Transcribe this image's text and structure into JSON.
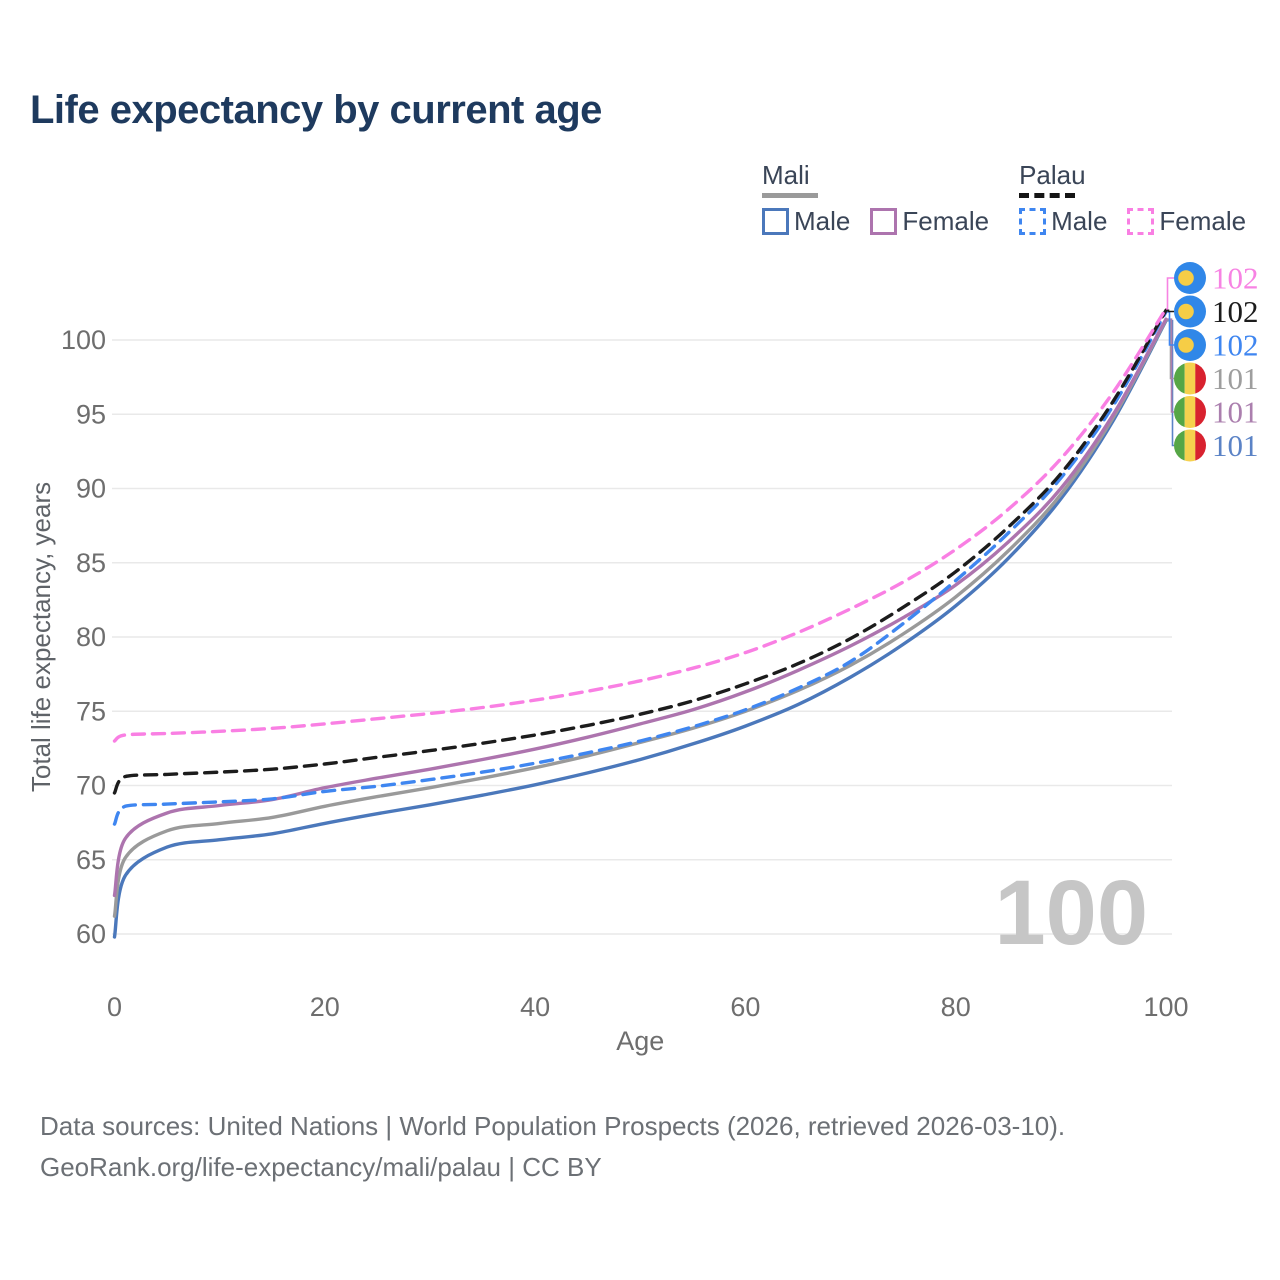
{
  "title": "Life expectancy by current age",
  "watermark_age": "100",
  "legend": {
    "groups": [
      {
        "name": "Mali",
        "line_style": "solid",
        "underline_color": "#9a9a9a",
        "items": [
          {
            "label": "Male",
            "color": "#4b78bb"
          },
          {
            "label": "Female",
            "color": "#ad74ae"
          }
        ]
      },
      {
        "name": "Palau",
        "line_style": "dashed",
        "underline_color": "#151515",
        "items": [
          {
            "label": "Male",
            "color": "#3f86f0"
          },
          {
            "label": "Female",
            "color": "#f97fe3"
          }
        ]
      }
    ]
  },
  "footer": {
    "line1": "Data sources: United Nations | World Population Prospects (2026, retrieved 2026-03-10).",
    "line2": "GeoRank.org/life-expectancy/mali/palau | CC BY"
  },
  "chart_data": {
    "type": "line",
    "title": "Life expectancy by current age",
    "xlabel": "Age",
    "ylabel": "Total life expectancy, years",
    "xlim": [
      0,
      100
    ],
    "ylim": [
      58,
      104
    ],
    "xticks": [
      0,
      20,
      40,
      60,
      80,
      100
    ],
    "yticks": [
      60,
      65,
      70,
      75,
      80,
      85,
      90,
      95,
      100
    ],
    "grid": true,
    "legend_position": "top-right",
    "grid_color": "#e9e9e9",
    "tick_color": "#6e6e6e",
    "watermark_color": "#c6c6c6",
    "x": [
      0,
      1,
      5,
      10,
      15,
      20,
      25,
      30,
      35,
      40,
      45,
      50,
      55,
      60,
      65,
      70,
      75,
      80,
      85,
      90,
      95,
      100
    ],
    "series": [
      {
        "name": "Mali — Male",
        "country": "Mali",
        "sex": "Male",
        "color": "#4b78bb",
        "dash": "solid",
        "flag": "mali",
        "end_label": "101",
        "label_color": "#5b83c6",
        "label_row": 5,
        "values": [
          59.8,
          63.9,
          65.85,
          66.35,
          66.75,
          67.45,
          68.1,
          68.7,
          69.35,
          70.05,
          70.85,
          71.75,
          72.8,
          74.0,
          75.45,
          77.3,
          79.5,
          82.1,
          85.3,
          89.3,
          94.6,
          101.3
        ]
      },
      {
        "name": "Mali — Both sexes",
        "country": "Mali",
        "sex": "Both",
        "color": "#9a9a9a",
        "dash": "solid",
        "flag": "mali",
        "end_label": "101",
        "label_color": "#9e9e9e",
        "label_row": 3,
        "values": [
          61.2,
          65.1,
          66.95,
          67.45,
          67.85,
          68.6,
          69.25,
          69.85,
          70.5,
          71.2,
          72.0,
          72.9,
          73.85,
          75.0,
          76.4,
          78.1,
          80.2,
          82.7,
          85.8,
          89.6,
          94.8,
          101.35
        ]
      },
      {
        "name": "Mali — Female",
        "country": "Mali",
        "sex": "Female",
        "color": "#ad74ae",
        "dash": "solid",
        "flag": "mali",
        "end_label": "101",
        "label_color": "#ab7fae",
        "label_row": 4,
        "values": [
          62.6,
          66.4,
          68.15,
          68.65,
          69.05,
          69.85,
          70.5,
          71.1,
          71.75,
          72.45,
          73.25,
          74.15,
          75.1,
          76.3,
          77.75,
          79.4,
          81.3,
          83.5,
          86.4,
          90.0,
          95.0,
          101.4
        ]
      },
      {
        "name": "Palau — Male",
        "country": "Palau",
        "sex": "Male",
        "color": "#3f86f0",
        "dash": "dashed",
        "flag": "palau",
        "end_label": "102",
        "label_color": "#3f86f0",
        "label_row": 2,
        "values": [
          67.4,
          68.6,
          68.75,
          68.9,
          69.1,
          69.6,
          69.95,
          70.4,
          70.9,
          71.5,
          72.2,
          73.0,
          73.95,
          75.1,
          76.55,
          78.35,
          80.9,
          83.8,
          87.0,
          90.7,
          95.6,
          101.9
        ]
      },
      {
        "name": "Palau — Both sexes",
        "country": "Palau",
        "sex": "Both",
        "color": "#1c1c1c",
        "dash": "dashed",
        "flag": "palau",
        "end_label": "102",
        "label_color": "#1c1c1c",
        "label_row": 1,
        "values": [
          69.5,
          70.6,
          70.75,
          70.9,
          71.1,
          71.45,
          71.9,
          72.35,
          72.85,
          73.4,
          74.05,
          74.8,
          75.7,
          76.85,
          78.2,
          79.9,
          82.0,
          84.4,
          87.4,
          91.0,
          95.9,
          102.0
        ]
      },
      {
        "name": "Palau — Female",
        "country": "Palau",
        "sex": "Female",
        "color": "#f97fe3",
        "dash": "dashed",
        "flag": "palau",
        "end_label": "102",
        "label_color": "#f783e3",
        "label_row": 0,
        "values": [
          73.0,
          73.4,
          73.5,
          73.65,
          73.85,
          74.15,
          74.5,
          74.85,
          75.25,
          75.75,
          76.35,
          77.05,
          77.9,
          78.95,
          80.3,
          81.9,
          83.7,
          85.9,
          88.6,
          92.0,
          96.5,
          102.1
        ]
      }
    ],
    "flag_colors": {
      "palau": {
        "bg": "#3087e8",
        "disc": "#f6cd46"
      },
      "mali": {
        "green": "#56a646",
        "yellow": "#f6d14e",
        "red": "#d8222f"
      }
    }
  }
}
